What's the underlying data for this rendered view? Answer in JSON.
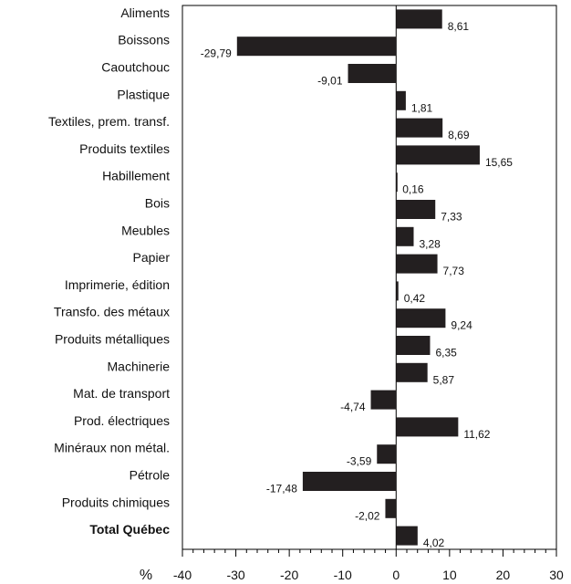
{
  "chart_data": {
    "type": "bar",
    "orientation": "horizontal",
    "categories": [
      "Aliments",
      "Boissons",
      "Caoutchouc",
      "Plastique",
      "Textiles, prem. transf.",
      "Produits textiles",
      "Habillement",
      "Bois",
      "Meubles",
      "Papier",
      "Imprimerie, édition",
      "Transfo. des métaux",
      "Produits métalliques",
      "Machinerie",
      "Mat. de transport",
      "Prod. électriques",
      "Minéraux non métal.",
      "Pétrole",
      "Produits chimiques",
      "Total Québec"
    ],
    "values": [
      8.61,
      -29.79,
      -9.01,
      1.81,
      8.69,
      15.65,
      0.16,
      7.33,
      3.28,
      7.73,
      0.42,
      9.24,
      6.35,
      5.87,
      -4.74,
      11.62,
      -3.59,
      -17.48,
      -2.02,
      4.02
    ],
    "value_labels": [
      "8,61",
      "-29,79",
      "-9,01",
      "1,81",
      "8,69",
      "15,65",
      "0,16",
      "7,33",
      "3,28",
      "7,73",
      "0,42",
      "9,24",
      "6,35",
      "5,87",
      "-4,74",
      "11,62",
      "-3,59",
      "-17,48",
      "-2,02",
      "4,02"
    ],
    "bold_categories": [
      "Total Québec"
    ],
    "xlabel": "%",
    "xlim": [
      -40,
      30
    ],
    "xticks": [
      -40,
      -30,
      -20,
      -10,
      0,
      10,
      20,
      30
    ],
    "xtick_labels": [
      "-40",
      "-30",
      "-20",
      "-10",
      "0",
      "10",
      "20",
      "30"
    ],
    "grid": false,
    "bar_color": "#231f20"
  }
}
